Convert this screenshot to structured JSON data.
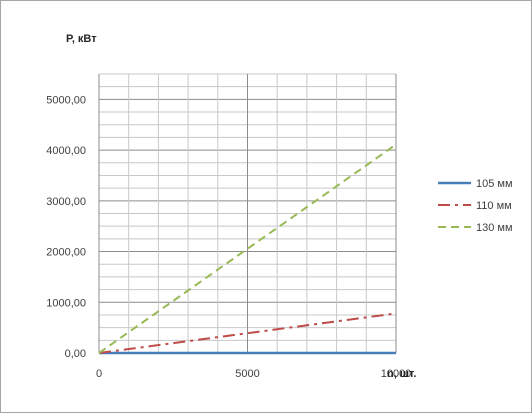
{
  "chart_data": {
    "type": "line",
    "ylabel": "Р, кВт",
    "xlabel": "n, шт.",
    "xlim": [
      0,
      10000
    ],
    "ylim": [
      0,
      5500
    ],
    "y_ticks": [
      0,
      1000,
      2000,
      3000,
      4000,
      5000
    ],
    "y_tick_labels": [
      "0,00",
      "1000,00",
      "2000,00",
      "3000,00",
      "4000,00",
      "5000,00"
    ],
    "x_ticks": [
      0,
      5000,
      10000
    ],
    "x_tick_labels": [
      "0",
      "5000",
      "10000"
    ],
    "grid": true,
    "legend_position": "right",
    "series": [
      {
        "name": "105 мм",
        "color": "#4a7ebb",
        "style": "solid",
        "x": [
          0,
          10000
        ],
        "y": [
          0,
          0
        ]
      },
      {
        "name": "110 мм",
        "color": "#be4b48",
        "style": "dash-dot",
        "x": [
          0,
          10000
        ],
        "y": [
          0,
          780
        ]
      },
      {
        "name": "130 мм",
        "color": "#98b954",
        "style": "dashed",
        "x": [
          0,
          10000
        ],
        "y": [
          0,
          4110
        ]
      }
    ]
  }
}
